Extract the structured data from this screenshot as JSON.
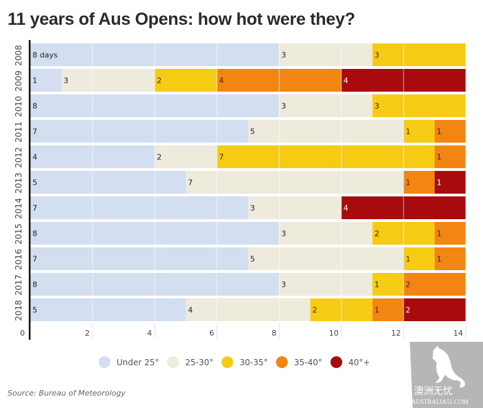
{
  "title": "11 years of Aus Opens: how hot were they?",
  "chart_data": {
    "type": "bar",
    "orientation": "horizontal",
    "stacked": true,
    "title": "11 years of Aus Opens: how hot were they?",
    "xlabel": "",
    "ylabel": "",
    "xlim": [
      0,
      14
    ],
    "x_ticks": [
      "0",
      "2",
      "4",
      "6",
      "8",
      "10",
      "12",
      "14"
    ],
    "grid": true,
    "categories": [
      "2008",
      "2009",
      "2010",
      "2011",
      "2012",
      "2013",
      "2014",
      "2015",
      "2016",
      "2017",
      "2018"
    ],
    "series": [
      {
        "name": "Under 25°",
        "color": "#d3dff0",
        "label_color": "#222222",
        "values": [
          8,
          1,
          8,
          7,
          4,
          5,
          7,
          8,
          7,
          8,
          5
        ]
      },
      {
        "name": "25-30°",
        "color": "#efebdc",
        "label_color": "#222222",
        "values": [
          3,
          3,
          3,
          5,
          2,
          7,
          3,
          3,
          5,
          3,
          4
        ]
      },
      {
        "name": "30-35°",
        "color": "#f6cb14",
        "label_color": "#3a2a00",
        "values": [
          3,
          2,
          3,
          1,
          7,
          0,
          0,
          2,
          1,
          1,
          2
        ]
      },
      {
        "name": "35-40°",
        "color": "#f38512",
        "label_color": "#4a1a00",
        "values": [
          0,
          4,
          0,
          1,
          1,
          1,
          0,
          1,
          1,
          2,
          1
        ]
      },
      {
        "name": "40°+",
        "color": "#a90a0d",
        "label_color": "#ffffff",
        "values": [
          0,
          4,
          0,
          0,
          0,
          1,
          4,
          0,
          0,
          0,
          2
        ]
      }
    ],
    "first_label_suffix": " days",
    "legend_position": "bottom"
  },
  "legend": [
    {
      "label": "Under 25°",
      "color": "#d3dff0"
    },
    {
      "label": "25-30°",
      "color": "#efebdc"
    },
    {
      "label": "30-35°",
      "color": "#f6cb14"
    },
    {
      "label": "35-40°",
      "color": "#f38512"
    },
    {
      "label": "40°+",
      "color": "#a90a0d"
    }
  ],
  "source": "Source: Bureau of Meteorology",
  "watermark": {
    "chinese": "澳洲无忧",
    "text": "AUSTRALIA51.COM"
  }
}
